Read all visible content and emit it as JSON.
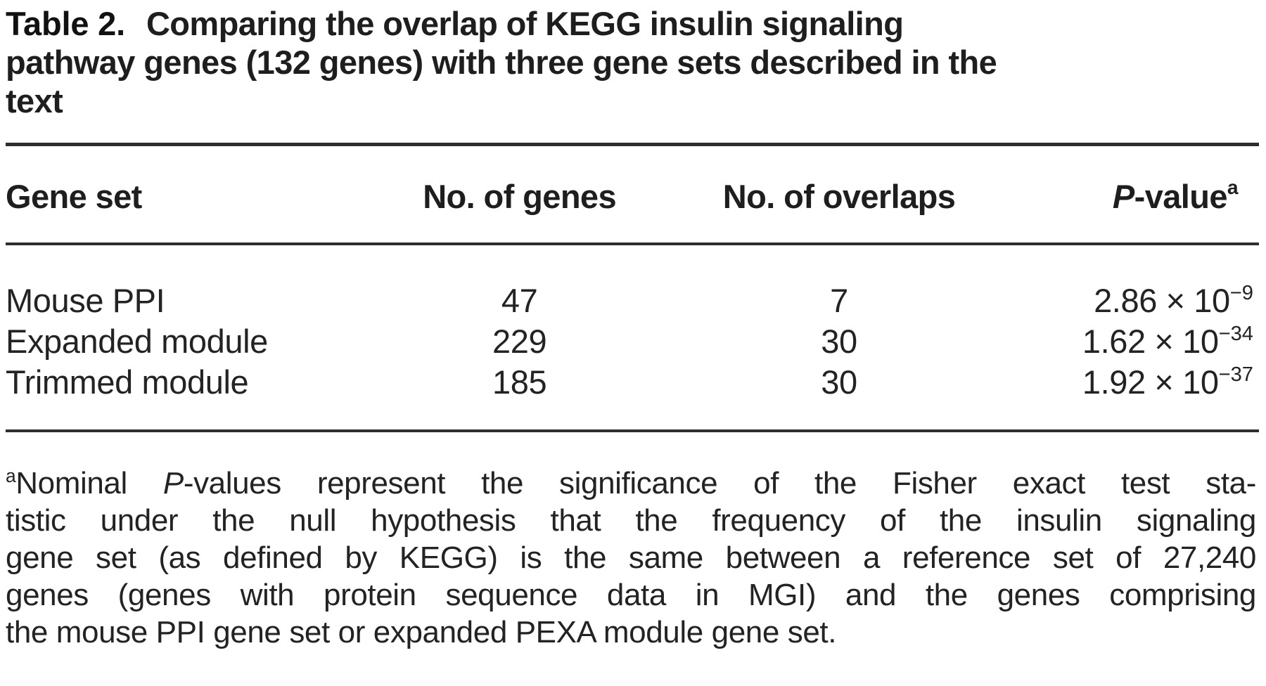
{
  "caption": {
    "label": "Table 2.",
    "lines": [
      "Comparing the overlap of KEGG insulin signaling",
      "pathway genes (132 genes) with three gene sets described in the",
      "text"
    ]
  },
  "table": {
    "headers": {
      "gene_set": "Gene set",
      "num_genes": "No. of genes",
      "num_overlaps": "No. of overlaps",
      "pvalue_italic": "P",
      "pvalue_rest": "-value",
      "pvalue_marker": "a"
    },
    "rows": [
      {
        "gene_set": "Mouse PPI",
        "num_genes": "47",
        "num_overlaps": "7",
        "pvalue_base": "2.86 × 10",
        "pvalue_exp": "−9"
      },
      {
        "gene_set": "Expanded module",
        "num_genes": "229",
        "num_overlaps": "30",
        "pvalue_base": "1.62 × 10",
        "pvalue_exp": "−34"
      },
      {
        "gene_set": "Trimmed module",
        "num_genes": "185",
        "num_overlaps": "30",
        "pvalue_base": "1.92 × 10",
        "pvalue_exp": "−37"
      }
    ]
  },
  "footnote": {
    "marker": "a",
    "line1": {
      "pre": "Nominal ",
      "italic": "P",
      "post": "-values represent the significance of the Fisher exact test sta-"
    },
    "line2": "tistic under the null hypothesis that the frequency of the insulin signaling",
    "line3": "gene set (as defined by KEGG) is the same between a reference set of 27,240",
    "line4": "genes (genes with protein sequence data in MGI) and the genes comprising",
    "line5": "the mouse PPI gene set or expanded PEXA module gene set."
  },
  "colors": {
    "text": "#232323",
    "rule": "#2e2e2e",
    "background": "#ffffff"
  }
}
